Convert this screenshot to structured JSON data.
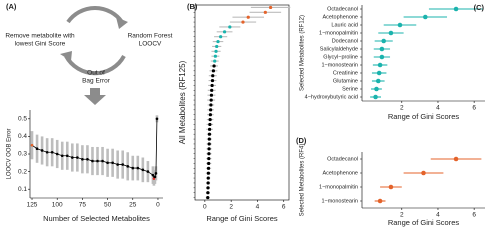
{
  "diagram": {
    "left": [
      "Remove metabolite with",
      "lowest Gini Score"
    ],
    "right": [
      "Random Forest",
      "LOOCV"
    ],
    "bottom": [
      "Out of",
      "Bag Error"
    ]
  },
  "chart_data": [
    {
      "type": "line",
      "panel": "(A)",
      "ylabel": "LOOCV OOB Error",
      "xlabel": "Number of Selected Metabolites",
      "x": [
        125,
        120,
        115,
        110,
        105,
        100,
        95,
        90,
        85,
        80,
        75,
        70,
        65,
        60,
        55,
        50,
        45,
        40,
        35,
        30,
        25,
        20,
        15,
        10,
        5,
        4,
        3,
        2,
        1
      ],
      "values": [
        0.35,
        0.33,
        0.32,
        0.31,
        0.31,
        0.3,
        0.29,
        0.29,
        0.28,
        0.28,
        0.27,
        0.27,
        0.26,
        0.26,
        0.26,
        0.25,
        0.25,
        0.24,
        0.24,
        0.23,
        0.22,
        0.22,
        0.21,
        0.2,
        0.18,
        0.16,
        0.17,
        0.19,
        0.5
      ],
      "errors": [
        0.08,
        0.08,
        0.08,
        0.08,
        0.08,
        0.08,
        0.08,
        0.08,
        0.08,
        0.08,
        0.08,
        0.08,
        0.08,
        0.08,
        0.08,
        0.08,
        0.08,
        0.08,
        0.08,
        0.08,
        0.07,
        0.07,
        0.07,
        0.06,
        0.05,
        0.04,
        0.04,
        0.04,
        0.02
      ],
      "point_colors": [
        "#e4632b",
        "#000",
        "#000",
        "#000",
        "#000",
        "#000",
        "#000",
        "#000",
        "#000",
        "#000",
        "#000",
        "#000",
        "#000",
        "#000",
        "#000",
        "#000",
        "#000",
        "#000",
        "#000",
        "#000",
        "#000",
        "#000",
        "#000",
        "#000",
        "#000",
        "#e0302a",
        "#000",
        "#000",
        "#000"
      ],
      "line_color": "#000",
      "error_color": "#bdbdbd",
      "xlim": [
        127,
        -5
      ],
      "ylim": [
        0.05,
        0.55
      ],
      "xticks": [
        125,
        100,
        75,
        50,
        25,
        0
      ],
      "yticks": [
        0.1,
        0.2,
        0.3,
        0.4,
        0.5
      ]
    },
    {
      "type": "dot",
      "panel": "(B)",
      "ylabel": "All Metabolites (RF125)",
      "xlabel": "Range of Gini Scores",
      "categories": [
        null,
        null,
        null,
        null,
        null,
        null,
        null,
        null,
        null,
        null,
        null,
        null,
        null,
        null,
        null,
        null,
        null,
        null,
        null,
        null,
        null,
        null,
        null,
        null,
        null,
        null,
        null,
        null,
        null,
        null,
        null,
        null,
        null,
        null,
        null,
        null,
        null,
        null,
        null,
        null
      ],
      "values": [
        5.0,
        4.6,
        3.3,
        2.9,
        1.9,
        1.5,
        1.2,
        1.0,
        0.9,
        0.85,
        0.8,
        0.75,
        0.7,
        0.65,
        0.6,
        0.58,
        0.55,
        0.52,
        0.5,
        0.48,
        0.46,
        0.44,
        0.42,
        0.4,
        0.38,
        0.36,
        0.35,
        0.34,
        0.33,
        0.32,
        0.31,
        0.3,
        0.29,
        0.28,
        0.27,
        0.26,
        0.25,
        0.24,
        0.23,
        0.22
      ],
      "errors": [
        1.5,
        1.2,
        1.2,
        1.0,
        0.8,
        0.6,
        0.5,
        0.4,
        0.35,
        0.35,
        0.3,
        0.3,
        0.3,
        0.3,
        0.3,
        0.3,
        0.3,
        0.3,
        0.3,
        0.3,
        0.25,
        0.25,
        0.25,
        0.25,
        0.25,
        0.25,
        0.2,
        0.2,
        0.2,
        0.2,
        0.2,
        0.2,
        0.2,
        0.2,
        0.2,
        0.15,
        0.15,
        0.15,
        0.15,
        0.15
      ],
      "point_colors": [
        "#e4632b",
        "#e4632b",
        "#e4632b",
        "#e4632b",
        "#1bb3ad",
        "#1bb3ad",
        "#1bb3ad",
        "#1bb3ad",
        "#1bb3ad",
        "#1bb3ad",
        "#1bb3ad",
        "#1bb3ad",
        "#000",
        "#000",
        "#000",
        "#000",
        "#000",
        "#000",
        "#000",
        "#000",
        "#000",
        "#000",
        "#000",
        "#000",
        "#000",
        "#000",
        "#000",
        "#000",
        "#000",
        "#000",
        "#000",
        "#000",
        "#000",
        "#000",
        "#000",
        "#000",
        "#000",
        "#000",
        "#000",
        "#000"
      ],
      "error_color": "#bdbdbd",
      "xlim": [
        -0.75,
        6.4
      ],
      "xticks": [
        0,
        2,
        4,
        6
      ],
      "frame": true
    },
    {
      "type": "dot",
      "panel": "(C)",
      "ylabel": "Selected Metabolites (RF12)",
      "xlabel": "Range of Gini Scores",
      "categories": [
        "Octadecanol",
        "Acetophenone",
        "Lauric acid",
        "1−monopalmitin",
        "Dodecanol",
        "Salicylaldehyde",
        "Glycyl−proline",
        "1−monostearin",
        "Creatinine",
        "Glutamine",
        "Serine",
        "4−hydroxybutyric acid"
      ],
      "values": [
        5.0,
        3.3,
        1.9,
        1.4,
        1.0,
        0.9,
        0.9,
        0.8,
        0.75,
        0.7,
        0.6,
        0.55
      ],
      "errors": [
        1.5,
        1.2,
        0.9,
        0.7,
        0.5,
        0.45,
        0.45,
        0.4,
        0.4,
        0.35,
        0.3,
        0.3
      ],
      "color": "#1bb3ad",
      "xlim": [
        -0.2,
        6.6
      ],
      "xticks": [
        2,
        4,
        6
      ],
      "frame": false
    },
    {
      "type": "dot",
      "panel": "(D)",
      "ylabel": "Selected Metabolites (RF4)",
      "xlabel": "Range of Gini Scores",
      "categories": [
        "Octadecanol",
        "Acetophenone",
        "1−monopalmitin",
        "1−monostearin"
      ],
      "values": [
        5.0,
        3.2,
        1.4,
        0.8
      ],
      "errors": [
        1.4,
        1.1,
        0.6,
        0.3
      ],
      "color": "#e4632b",
      "xlim": [
        -0.2,
        6.6
      ],
      "xticks": [
        2,
        4,
        6
      ],
      "frame": false
    }
  ]
}
